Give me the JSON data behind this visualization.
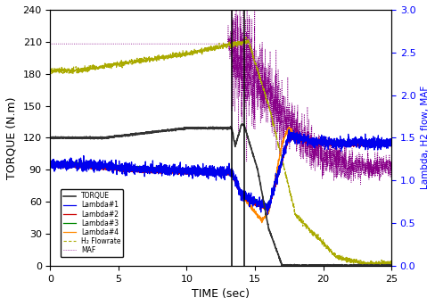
{
  "title": "",
  "xlabel": "TIME (sec)",
  "ylabel_left": "TORQUE (N.m)",
  "ylabel_right": "Lambda, H2 flow, MAF",
  "xlim": [
    0,
    25
  ],
  "ylim_left": [
    0,
    240
  ],
  "ylim_right": [
    0,
    3.0
  ],
  "yticks_left": [
    0,
    30,
    60,
    90,
    120,
    150,
    180,
    210,
    240
  ],
  "yticks_right": [
    0.0,
    0.5,
    1.0,
    1.5,
    2.0,
    2.5,
    3.0
  ],
  "xticks": [
    0,
    5,
    10,
    15,
    20,
    25
  ],
  "vline1": 13.3,
  "vline2": 14.2,
  "colors": {
    "torque": "#333333",
    "lambda1": "#0000ee",
    "lambda2": "#cc0000",
    "lambda3": "#008800",
    "lambda4": "#ff8800",
    "h2flow": "#aaaa00",
    "maf": "#880088"
  },
  "legend_labels": [
    "TORQUE",
    "Lambda#1",
    "Lambda#2",
    "Lambda#3",
    "Lambda#4",
    "H₂ Flowrate",
    "MAF"
  ]
}
